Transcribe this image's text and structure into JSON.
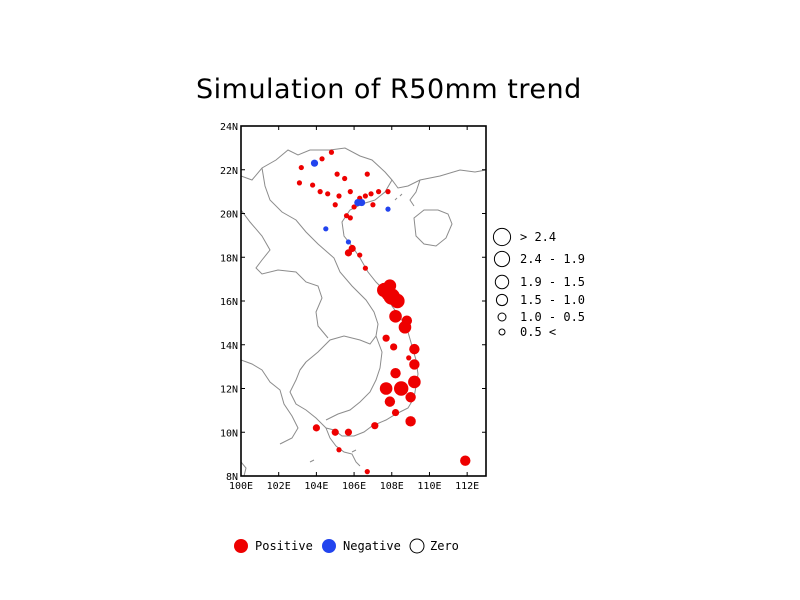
{
  "title": "Simulation of R50mm trend",
  "colors": {
    "positive": "#ee0000",
    "negative": "#2244ee",
    "zero": "#ffffff",
    "coast": "#8c8c8c"
  },
  "map": {
    "lon_range": [
      100,
      113
    ],
    "lat_range": [
      8,
      24
    ],
    "lon_ticks": [
      {
        "value": 100,
        "label": "100E"
      },
      {
        "value": 102,
        "label": "102E"
      },
      {
        "value": 104,
        "label": "104E"
      },
      {
        "value": 106,
        "label": "106E"
      },
      {
        "value": 108,
        "label": "108E"
      },
      {
        "value": 110,
        "label": "110E"
      },
      {
        "value": 112,
        "label": "112E"
      }
    ],
    "lat_ticks": [
      {
        "value": 8,
        "label": "8N"
      },
      {
        "value": 10,
        "label": "10N"
      },
      {
        "value": 12,
        "label": "12N"
      },
      {
        "value": 14,
        "label": "14N"
      },
      {
        "value": 16,
        "label": "16N"
      },
      {
        "value": 18,
        "label": "18N"
      },
      {
        "value": 20,
        "label": "20N"
      },
      {
        "value": 22,
        "label": "22N"
      },
      {
        "value": 24,
        "label": "24N"
      }
    ]
  },
  "size_legend": [
    {
      "label": "> 2.4",
      "cls": 6
    },
    {
      "label": "2.4 - 1.9",
      "cls": 5
    },
    {
      "label": "1.9 - 1.5",
      "cls": 4
    },
    {
      "label": "1.5 - 1.0",
      "cls": 3
    },
    {
      "label": "1.0 - 0.5",
      "cls": 2
    },
    {
      "label": "0.5 <",
      "cls": 1
    }
  ],
  "color_legend": [
    {
      "label": "Positive",
      "type": "positive"
    },
    {
      "label": "Negative",
      "type": "negative"
    },
    {
      "label": "Zero",
      "type": "zero"
    }
  ],
  "chart_data": {
    "type": "scatter",
    "title": "Simulation of R50mm trend",
    "xlabel": "",
    "ylabel": "",
    "xlim": [
      100,
      113
    ],
    "ylim": [
      8,
      24
    ],
    "size_classes": [
      "> 2.4",
      "2.4 - 1.9",
      "1.9 - 1.5",
      "1.5 - 1.0",
      "1.0 - 0.5",
      "0.5 <"
    ],
    "series": [
      {
        "name": "Positive",
        "points": [
          {
            "lon": 104.3,
            "lat": 22.5,
            "cls": 1
          },
          {
            "lon": 104.8,
            "lat": 22.8,
            "cls": 1
          },
          {
            "lon": 103.2,
            "lat": 22.1,
            "cls": 1
          },
          {
            "lon": 105.1,
            "lat": 21.8,
            "cls": 1
          },
          {
            "lon": 105.5,
            "lat": 21.6,
            "cls": 1
          },
          {
            "lon": 106.7,
            "lat": 21.8,
            "cls": 1
          },
          {
            "lon": 103.1,
            "lat": 21.4,
            "cls": 1
          },
          {
            "lon": 103.8,
            "lat": 21.3,
            "cls": 1
          },
          {
            "lon": 104.2,
            "lat": 21.0,
            "cls": 1
          },
          {
            "lon": 104.6,
            "lat": 20.9,
            "cls": 1
          },
          {
            "lon": 105.2,
            "lat": 20.8,
            "cls": 1
          },
          {
            "lon": 105.8,
            "lat": 21.0,
            "cls": 1
          },
          {
            "lon": 106.3,
            "lat": 20.7,
            "cls": 1
          },
          {
            "lon": 106.6,
            "lat": 20.8,
            "cls": 1
          },
          {
            "lon": 106.9,
            "lat": 20.9,
            "cls": 1
          },
          {
            "lon": 107.3,
            "lat": 21.0,
            "cls": 1
          },
          {
            "lon": 107.8,
            "lat": 21.0,
            "cls": 1
          },
          {
            "lon": 105.0,
            "lat": 20.4,
            "cls": 1
          },
          {
            "lon": 106.0,
            "lat": 20.3,
            "cls": 1
          },
          {
            "lon": 107.0,
            "lat": 20.4,
            "cls": 1
          },
          {
            "lon": 105.8,
            "lat": 19.8,
            "cls": 1
          },
          {
            "lon": 105.6,
            "lat": 19.9,
            "cls": 1
          },
          {
            "lon": 105.7,
            "lat": 18.2,
            "cls": 2
          },
          {
            "lon": 105.9,
            "lat": 18.4,
            "cls": 2
          },
          {
            "lon": 106.3,
            "lat": 18.1,
            "cls": 1
          },
          {
            "lon": 106.6,
            "lat": 17.5,
            "cls": 1
          },
          {
            "lon": 107.6,
            "lat": 16.5,
            "cls": 5
          },
          {
            "lon": 107.9,
            "lat": 16.7,
            "cls": 4
          },
          {
            "lon": 108.0,
            "lat": 16.2,
            "cls": 6
          },
          {
            "lon": 108.3,
            "lat": 16.0,
            "cls": 5
          },
          {
            "lon": 107.8,
            "lat": 16.3,
            "cls": 4
          },
          {
            "lon": 108.2,
            "lat": 15.3,
            "cls": 4
          },
          {
            "lon": 108.8,
            "lat": 15.1,
            "cls": 3
          },
          {
            "lon": 108.7,
            "lat": 14.8,
            "cls": 4
          },
          {
            "lon": 107.7,
            "lat": 14.3,
            "cls": 2
          },
          {
            "lon": 108.1,
            "lat": 13.9,
            "cls": 2
          },
          {
            "lon": 109.2,
            "lat": 13.8,
            "cls": 3
          },
          {
            "lon": 108.9,
            "lat": 13.4,
            "cls": 1
          },
          {
            "lon": 109.2,
            "lat": 13.1,
            "cls": 3
          },
          {
            "lon": 108.2,
            "lat": 12.7,
            "cls": 3
          },
          {
            "lon": 109.2,
            "lat": 12.3,
            "cls": 4
          },
          {
            "lon": 107.7,
            "lat": 12.0,
            "cls": 4
          },
          {
            "lon": 108.5,
            "lat": 12.0,
            "cls": 5
          },
          {
            "lon": 109.0,
            "lat": 11.6,
            "cls": 3
          },
          {
            "lon": 107.9,
            "lat": 11.4,
            "cls": 3
          },
          {
            "lon": 108.2,
            "lat": 10.9,
            "cls": 2
          },
          {
            "lon": 109.0,
            "lat": 10.5,
            "cls": 3
          },
          {
            "lon": 107.1,
            "lat": 10.3,
            "cls": 2
          },
          {
            "lon": 104.0,
            "lat": 10.2,
            "cls": 2
          },
          {
            "lon": 105.0,
            "lat": 10.0,
            "cls": 2
          },
          {
            "lon": 105.7,
            "lat": 10.0,
            "cls": 2
          },
          {
            "lon": 105.2,
            "lat": 9.2,
            "cls": 1
          },
          {
            "lon": 106.7,
            "lat": 8.2,
            "cls": 1
          },
          {
            "lon": 111.9,
            "lat": 8.7,
            "cls": 3
          }
        ]
      },
      {
        "name": "Negative",
        "points": [
          {
            "lon": 103.9,
            "lat": 22.3,
            "cls": 2
          },
          {
            "lon": 106.2,
            "lat": 20.5,
            "cls": 2
          },
          {
            "lon": 106.4,
            "lat": 20.5,
            "cls": 2
          },
          {
            "lon": 107.8,
            "lat": 20.2,
            "cls": 1
          },
          {
            "lon": 104.5,
            "lat": 19.3,
            "cls": 1
          },
          {
            "lon": 105.7,
            "lat": 18.7,
            "cls": 1
          }
        ]
      },
      {
        "name": "Zero",
        "points": []
      }
    ]
  }
}
